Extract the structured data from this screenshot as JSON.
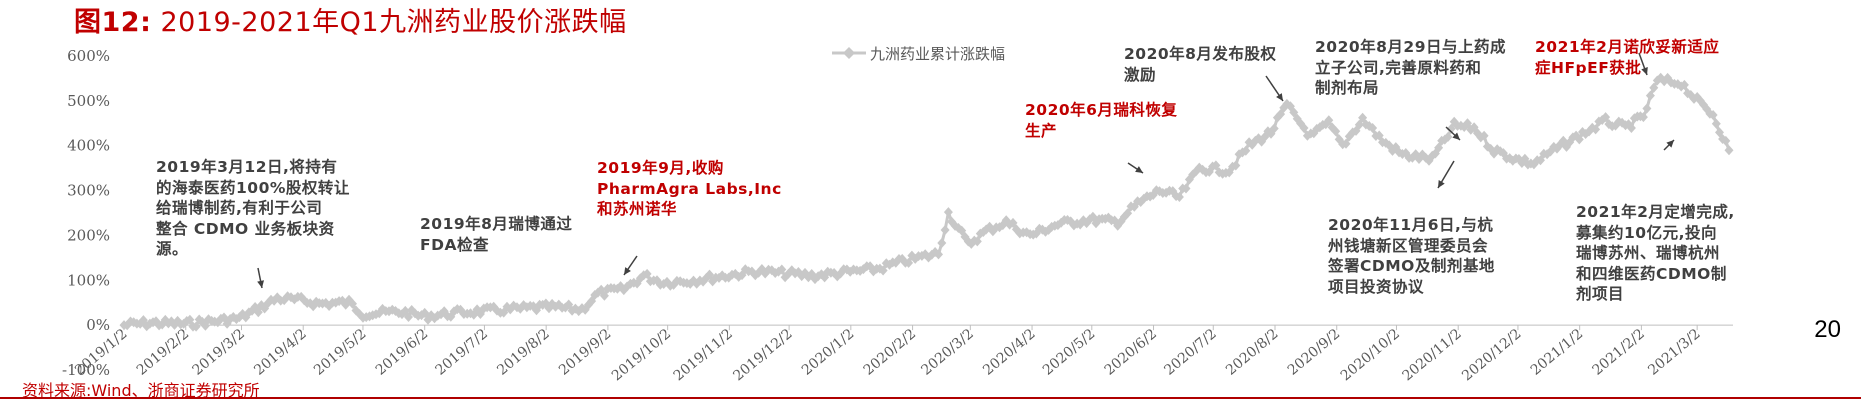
{
  "title": {
    "fig": "图12:",
    "text": "2019-2021年Q1九洲药业股价涨跌幅"
  },
  "page_number": "20",
  "source": "资料来源:Wind、浙商证券研究所",
  "colors": {
    "accent": "#c00000",
    "series": "#c8c8c8",
    "annotation": "#404040"
  },
  "chart_data": {
    "type": "line",
    "legend": {
      "position": "top",
      "entries": [
        "九洲药业累计涨跌幅"
      ]
    },
    "ylim": [
      -100,
      600
    ],
    "yticks": [
      "-100%",
      "0%",
      "100%",
      "200%",
      "300%",
      "400%",
      "500%",
      "600%"
    ],
    "yvalues": [
      -100,
      0,
      100,
      200,
      300,
      400,
      500,
      600
    ],
    "xlim": [
      "2019-01-02",
      "2021-03-20"
    ],
    "xticks": [
      "2019/1/2",
      "2019/2/2",
      "2019/3/2",
      "2019/4/2",
      "2019/5/2",
      "2019/6/2",
      "2019/7/2",
      "2019/8/2",
      "2019/9/2",
      "2019/10/2",
      "2019/11/2",
      "2019/12/2",
      "2020/1/2",
      "2020/2/2",
      "2020/3/2",
      "2020/4/2",
      "2020/5/2",
      "2020/6/2",
      "2020/7/2",
      "2020/8/2",
      "2020/9/2",
      "2020/10/2",
      "2020/11/2",
      "2020/12/2",
      "2021/1/2",
      "2021/2/2",
      "2021/3/2"
    ],
    "series": [
      {
        "name": "九洲药业累计涨跌幅",
        "points": [
          [
            "2019-01-02",
            0
          ],
          [
            "2019-01-15",
            5
          ],
          [
            "2019-02-01",
            3
          ],
          [
            "2019-02-15",
            8
          ],
          [
            "2019-03-01",
            15
          ],
          [
            "2019-03-12",
            40
          ],
          [
            "2019-03-20",
            60
          ],
          [
            "2019-04-01",
            55
          ],
          [
            "2019-04-10",
            48
          ],
          [
            "2019-04-25",
            50
          ],
          [
            "2019-05-02",
            25
          ],
          [
            "2019-05-20",
            30
          ],
          [
            "2019-06-02",
            20
          ],
          [
            "2019-06-20",
            28
          ],
          [
            "2019-07-05",
            32
          ],
          [
            "2019-07-25",
            38
          ],
          [
            "2019-08-05",
            40
          ],
          [
            "2019-08-20",
            35
          ],
          [
            "2019-08-28",
            70
          ],
          [
            "2019-09-10",
            80
          ],
          [
            "2019-09-20",
            110
          ],
          [
            "2019-09-30",
            95
          ],
          [
            "2019-10-15",
            100
          ],
          [
            "2019-10-31",
            110
          ],
          [
            "2019-11-15",
            120
          ],
          [
            "2019-11-30",
            115
          ],
          [
            "2019-12-15",
            110
          ],
          [
            "2019-12-31",
            118
          ],
          [
            "2020-01-15",
            125
          ],
          [
            "2020-01-31",
            145
          ],
          [
            "2020-02-15",
            160
          ],
          [
            "2020-02-20",
            250
          ],
          [
            "2020-03-01",
            180
          ],
          [
            "2020-03-10",
            210
          ],
          [
            "2020-03-20",
            230
          ],
          [
            "2020-04-01",
            200
          ],
          [
            "2020-04-15",
            225
          ],
          [
            "2020-05-01",
            235
          ],
          [
            "2020-05-15",
            230
          ],
          [
            "2020-05-25",
            270
          ],
          [
            "2020-06-05",
            300
          ],
          [
            "2020-06-15",
            285
          ],
          [
            "2020-06-25",
            350
          ],
          [
            "2020-07-10",
            345
          ],
          [
            "2020-07-20",
            400
          ],
          [
            "2020-07-31",
            430
          ],
          [
            "2020-08-08",
            490
          ],
          [
            "2020-08-20",
            420
          ],
          [
            "2020-08-29",
            450
          ],
          [
            "2020-09-05",
            400
          ],
          [
            "2020-09-15",
            460
          ],
          [
            "2020-09-25",
            410
          ],
          [
            "2020-10-05",
            380
          ],
          [
            "2020-10-20",
            370
          ],
          [
            "2020-10-31",
            445
          ],
          [
            "2020-11-10",
            440
          ],
          [
            "2020-11-20",
            390
          ],
          [
            "2020-12-01",
            370
          ],
          [
            "2020-12-10",
            360
          ],
          [
            "2020-12-20",
            390
          ],
          [
            "2021-01-05",
            430
          ],
          [
            "2021-01-15",
            455
          ],
          [
            "2021-01-25",
            440
          ],
          [
            "2021-02-03",
            465
          ],
          [
            "2021-02-10",
            545
          ],
          [
            "2021-02-22",
            540
          ],
          [
            "2021-03-02",
            500
          ],
          [
            "2021-03-10",
            470
          ],
          [
            "2021-03-18",
            390
          ]
        ]
      }
    ],
    "annotations": [
      {
        "id": "2019-03",
        "text": "2019年3月12日,将持有\n的海泰医药100%股权转让\n给瑞博制药,有利于公司\n整合 CDMO 业务板块资\n源。",
        "highlight": false
      },
      {
        "id": "2019-08",
        "text": "2019年8月瑞博通过\nFDA检查",
        "highlight": false
      },
      {
        "id": "2019-09",
        "text": "2019年9月,收购\nPharmAgra Labs,Inc\n和苏州诺华",
        "highlight": true
      },
      {
        "id": "2020-06",
        "text": "2020年6月瑞科恢复\n生产",
        "highlight": true
      },
      {
        "id": "2020-08",
        "text": "2020年8月发布股权\n激励",
        "highlight": false
      },
      {
        "id": "2020-08-29",
        "text": "2020年8月29日与上药成\n立子公司,完善原料药和\n制剂布局",
        "highlight": false
      },
      {
        "id": "2020-11",
        "text": "2020年11月6日,与杭\n州钱塘新区管理委员会\n签署CDMO及制剂基地\n项目投资协议",
        "highlight": false
      },
      {
        "id": "2021-02a",
        "text": "2021年2月诺欣妥新适应\n症HFpEF获批",
        "highlight": true
      },
      {
        "id": "2021-02b",
        "text": "2021年2月定增完成,\n募集约10亿元,投向\n瑞博苏州、瑞博杭州\n和四维医药CDMO制\n剂项目",
        "highlight": false
      }
    ]
  }
}
